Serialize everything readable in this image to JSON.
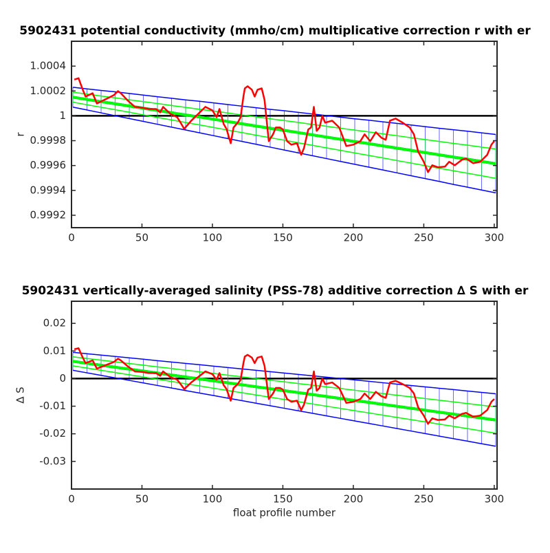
{
  "chart_data": [
    {
      "type": "line",
      "title": "5902431 potential conductivity (mmho/cm) multiplicative correction r with er",
      "ylabel": "r",
      "xlim": [
        0,
        302
      ],
      "xticks": [
        0,
        50,
        100,
        150,
        200,
        250,
        300
      ],
      "ylim": [
        0.9991,
        1.0006
      ],
      "yticks": [
        0.9992,
        0.9994,
        0.9996,
        0.9998,
        1,
        1.0002,
        1.0004
      ],
      "hline": 1,
      "series": [
        {
          "color": "#0000ff",
          "x": [
            1,
            11,
            21,
            31,
            41,
            51,
            61,
            71,
            81,
            91,
            101,
            111,
            121,
            131,
            141,
            151,
            161,
            171,
            181,
            191,
            201,
            211,
            221,
            231,
            241,
            251,
            261,
            271,
            281,
            291,
            301
          ],
          "values": [
            1.00015,
            1.000132,
            1.000114,
            1.000097,
            1.000079,
            1.000061,
            1.000043,
            1.000025,
            1.000007,
            0.99999,
            0.999972,
            0.999954,
            0.999936,
            0.999918,
            0.9999,
            0.999883,
            0.999865,
            0.999847,
            0.999829,
            0.999811,
            0.999793,
            0.999776,
            0.999758,
            0.99974,
            0.999722,
            0.999704,
            0.999686,
            0.999668,
            0.999651,
            0.999633,
            0.999615
          ],
          "errors": [
            8e-05,
            8.5e-05,
            9e-05,
            9.6e-05,
            0.000101,
            0.000106,
            0.000111,
            0.000116,
            0.000121,
            0.000127,
            0.000132,
            0.000137,
            0.000142,
            0.000147,
            0.000152,
            0.000158,
            0.000163,
            0.000168,
            0.000173,
            0.000178,
            0.000183,
            0.000189,
            0.000194,
            0.000199,
            0.000204,
            0.000209,
            0.000214,
            0.00022,
            0.000225,
            0.00023,
            0.000235
          ]
        },
        {
          "color": "#00ff00",
          "x": [
            1,
            11,
            21,
            31,
            41,
            51,
            61,
            71,
            81,
            91,
            101,
            111,
            121,
            131,
            141,
            151,
            161,
            171,
            181,
            191,
            201,
            211,
            221,
            231,
            241,
            251,
            261,
            271,
            281,
            291,
            301
          ],
          "values": [
            1.00015,
            1.000132,
            1.000114,
            1.000097,
            1.000079,
            1.000061,
            1.000043,
            1.000025,
            1.000007,
            0.99999,
            0.999972,
            0.999954,
            0.999936,
            0.999918,
            0.9999,
            0.999883,
            0.999865,
            0.999847,
            0.999829,
            0.999811,
            0.999793,
            0.999776,
            0.999758,
            0.99974,
            0.999722,
            0.999704,
            0.999686,
            0.999668,
            0.999651,
            0.999633,
            0.999615
          ],
          "errors": [
            4e-05,
            4.3e-05,
            4.5e-05,
            4.8e-05,
            5e-05,
            5.3e-05,
            5.6e-05,
            5.8e-05,
            6.1e-05,
            6.3e-05,
            6.6e-05,
            6.9e-05,
            7.1e-05,
            7.4e-05,
            7.6e-05,
            7.9e-05,
            8.2e-05,
            8.4e-05,
            8.7e-05,
            8.9e-05,
            9.2e-05,
            9.5e-05,
            9.7e-05,
            0.0001,
            0.000102,
            0.000105,
            0.000108,
            0.00011,
            0.000113,
            0.000115,
            0.000118
          ]
        },
        {
          "color": "#ff0000",
          "x": [
            2,
            5,
            8,
            10,
            15,
            18,
            20,
            25,
            30,
            33,
            35,
            40,
            45,
            50,
            55,
            60,
            63,
            65,
            70,
            75,
            78,
            80,
            85,
            90,
            95,
            100,
            103,
            105,
            108,
            110,
            113,
            115,
            118,
            120,
            122,
            123,
            125,
            128,
            130,
            132,
            135,
            137,
            140,
            143,
            145,
            148,
            150,
            153,
            156,
            160,
            163,
            165,
            168,
            170,
            172,
            174,
            176,
            178,
            180,
            185,
            190,
            195,
            200,
            205,
            208,
            212,
            216,
            220,
            223,
            226,
            230,
            235,
            240,
            243,
            246,
            250,
            253,
            256,
            260,
            265,
            268,
            272,
            277,
            280,
            285,
            290,
            295,
            298,
            300
          ],
          "values": [
            1.000292,
            1.000303,
            1.00021,
            1.000155,
            1.000182,
            1.000099,
            1.00011,
            1.000138,
            1.000166,
            1.000199,
            1.000182,
            1.000122,
            1.000072,
            1.000066,
            1.000055,
            1.000055,
            1.000028,
            1.000072,
            1.000017,
            0.999989,
            0.999934,
            0.999895,
            0.999961,
            1.000017,
            1.000072,
            1.000044,
            0.999989,
            1.000055,
            0.999934,
            0.999895,
            0.999779,
            0.999906,
            0.999945,
            0.999989,
            1.000155,
            1.000221,
            1.000238,
            1.00021,
            1.000155,
            1.00021,
            1.000221,
            1.000127,
            0.999796,
            0.999851,
            0.999906,
            0.999906,
            0.99989,
            0.999796,
            0.999768,
            0.999779,
            0.999686,
            0.999741,
            0.99989,
            0.999906,
            1.000072,
            0.999879,
            0.999906,
            1.0,
            0.999945,
            0.999961,
            0.999906,
            0.999757,
            0.999768,
            0.999796,
            0.999851,
            0.999796,
            0.999868,
            0.999823,
            0.999807,
            0.999961,
            0.999978,
            0.999945,
            0.999906,
            0.999851,
            0.999713,
            0.99963,
            0.999547,
            0.999602,
            0.999586,
            0.999591,
            0.99963,
            0.999602,
            0.999646,
            0.999657,
            0.999619,
            0.99963,
            0.999686,
            0.999768,
            0.999796
          ]
        }
      ]
    },
    {
      "type": "line",
      "title": "5902431 vertically-averaged salinity (PSS-78) additive correction ∆ S with er",
      "ylabel": "∆ S",
      "xlabel": "float profile number",
      "xlim": [
        0,
        302
      ],
      "xticks": [
        0,
        50,
        100,
        150,
        200,
        250,
        300
      ],
      "ylim": [
        -0.04,
        0.028
      ],
      "yticks": [
        -0.03,
        -0.02,
        -0.01,
        0,
        0.01,
        0.02
      ],
      "hline": 0,
      "series": [
        {
          "color": "#0000ff",
          "x": [
            1,
            11,
            21,
            31,
            41,
            51,
            61,
            71,
            81,
            91,
            101,
            111,
            121,
            131,
            141,
            151,
            161,
            171,
            181,
            191,
            201,
            211,
            221,
            231,
            241,
            251,
            261,
            271,
            281,
            291,
            301
          ],
          "values": [
            0.00625,
            0.00554,
            0.00483,
            0.00413,
            0.00342,
            0.00271,
            0.002,
            0.00129,
            0.00058,
            -0.00012,
            -0.00083,
            -0.00154,
            -0.00225,
            -0.00296,
            -0.00367,
            -0.00437,
            -0.00508,
            -0.00579,
            -0.0065,
            -0.00721,
            -0.00792,
            -0.00862,
            -0.00933,
            -0.01004,
            -0.01075,
            -0.01146,
            -0.01217,
            -0.01287,
            -0.01358,
            -0.01429,
            -0.015
          ],
          "errors": [
            0.00325,
            0.00346,
            0.00367,
            0.00388,
            0.00408,
            0.00429,
            0.0045,
            0.00471,
            0.00492,
            0.00513,
            0.00533,
            0.00554,
            0.00575,
            0.00596,
            0.00617,
            0.00638,
            0.00658,
            0.00679,
            0.007,
            0.00721,
            0.00742,
            0.00763,
            0.00783,
            0.00804,
            0.00825,
            0.00846,
            0.00867,
            0.00888,
            0.00908,
            0.00929,
            0.0095
          ]
        },
        {
          "color": "#00ff00",
          "x": [
            1,
            11,
            21,
            31,
            41,
            51,
            61,
            71,
            81,
            91,
            101,
            111,
            121,
            131,
            141,
            151,
            161,
            171,
            181,
            191,
            201,
            211,
            221,
            231,
            241,
            251,
            261,
            271,
            281,
            291,
            301
          ],
          "values": [
            0.00625,
            0.00554,
            0.00483,
            0.00413,
            0.00342,
            0.00271,
            0.002,
            0.00129,
            0.00058,
            -0.00012,
            -0.00083,
            -0.00154,
            -0.00225,
            -0.00296,
            -0.00367,
            -0.00437,
            -0.00508,
            -0.00579,
            -0.0065,
            -0.00721,
            -0.00792,
            -0.00862,
            -0.00933,
            -0.01004,
            -0.01075,
            -0.01146,
            -0.01217,
            -0.01287,
            -0.01358,
            -0.01429,
            -0.015
          ],
          "errors": [
            0.00163,
            0.00173,
            0.00183,
            0.00194,
            0.00204,
            0.00215,
            0.00225,
            0.00235,
            0.00246,
            0.00256,
            0.00267,
            0.00277,
            0.00288,
            0.00298,
            0.00308,
            0.00319,
            0.00329,
            0.0034,
            0.0035,
            0.0036,
            0.00371,
            0.00381,
            0.00392,
            0.00402,
            0.00413,
            0.00423,
            0.00433,
            0.00444,
            0.00454,
            0.00465,
            0.00475
          ]
        },
        {
          "color": "#ff0000",
          "x": [
            2,
            5,
            8,
            10,
            15,
            18,
            20,
            25,
            30,
            33,
            35,
            40,
            45,
            50,
            55,
            60,
            63,
            65,
            70,
            75,
            78,
            80,
            85,
            90,
            95,
            100,
            103,
            105,
            108,
            110,
            113,
            115,
            118,
            120,
            122,
            123,
            125,
            128,
            130,
            132,
            135,
            137,
            140,
            143,
            145,
            148,
            150,
            153,
            156,
            160,
            163,
            165,
            168,
            170,
            172,
            174,
            176,
            178,
            180,
            185,
            190,
            195,
            200,
            205,
            208,
            212,
            216,
            220,
            223,
            226,
            230,
            235,
            240,
            243,
            246,
            250,
            253,
            256,
            260,
            265,
            268,
            272,
            277,
            280,
            285,
            290,
            295,
            298,
            300
          ],
          "values": [
            0.0106,
            0.011,
            0.0076,
            0.0056,
            0.0066,
            0.0036,
            0.004,
            0.005,
            0.006,
            0.0072,
            0.0066,
            0.0044,
            0.0026,
            0.0024,
            0.002,
            0.002,
            0.001,
            0.0026,
            0.0006,
            -0.0004,
            -0.0024,
            -0.0038,
            -0.0014,
            0.0006,
            0.0026,
            0.0016,
            -0.0004,
            0.002,
            -0.0024,
            -0.0038,
            -0.008,
            -0.0034,
            -0.002,
            -0.0004,
            0.0056,
            0.008,
            0.0086,
            0.0076,
            0.0056,
            0.0076,
            0.008,
            0.0046,
            -0.0074,
            -0.0054,
            -0.0034,
            -0.0034,
            -0.004,
            -0.0074,
            -0.0084,
            -0.008,
            -0.0114,
            -0.0094,
            -0.004,
            -0.0034,
            0.0026,
            -0.0044,
            -0.0034,
            0,
            -0.002,
            -0.0014,
            -0.0034,
            -0.0088,
            -0.0084,
            -0.0074,
            -0.0054,
            -0.0074,
            -0.0048,
            -0.0064,
            -0.007,
            -0.0014,
            -0.0008,
            -0.002,
            -0.0034,
            -0.0054,
            -0.0104,
            -0.0134,
            -0.0164,
            -0.0144,
            -0.015,
            -0.0148,
            -0.0134,
            -0.0144,
            -0.0128,
            -0.0124,
            -0.0138,
            -0.0134,
            -0.0114,
            -0.0084,
            -0.0074
          ]
        }
      ]
    }
  ]
}
